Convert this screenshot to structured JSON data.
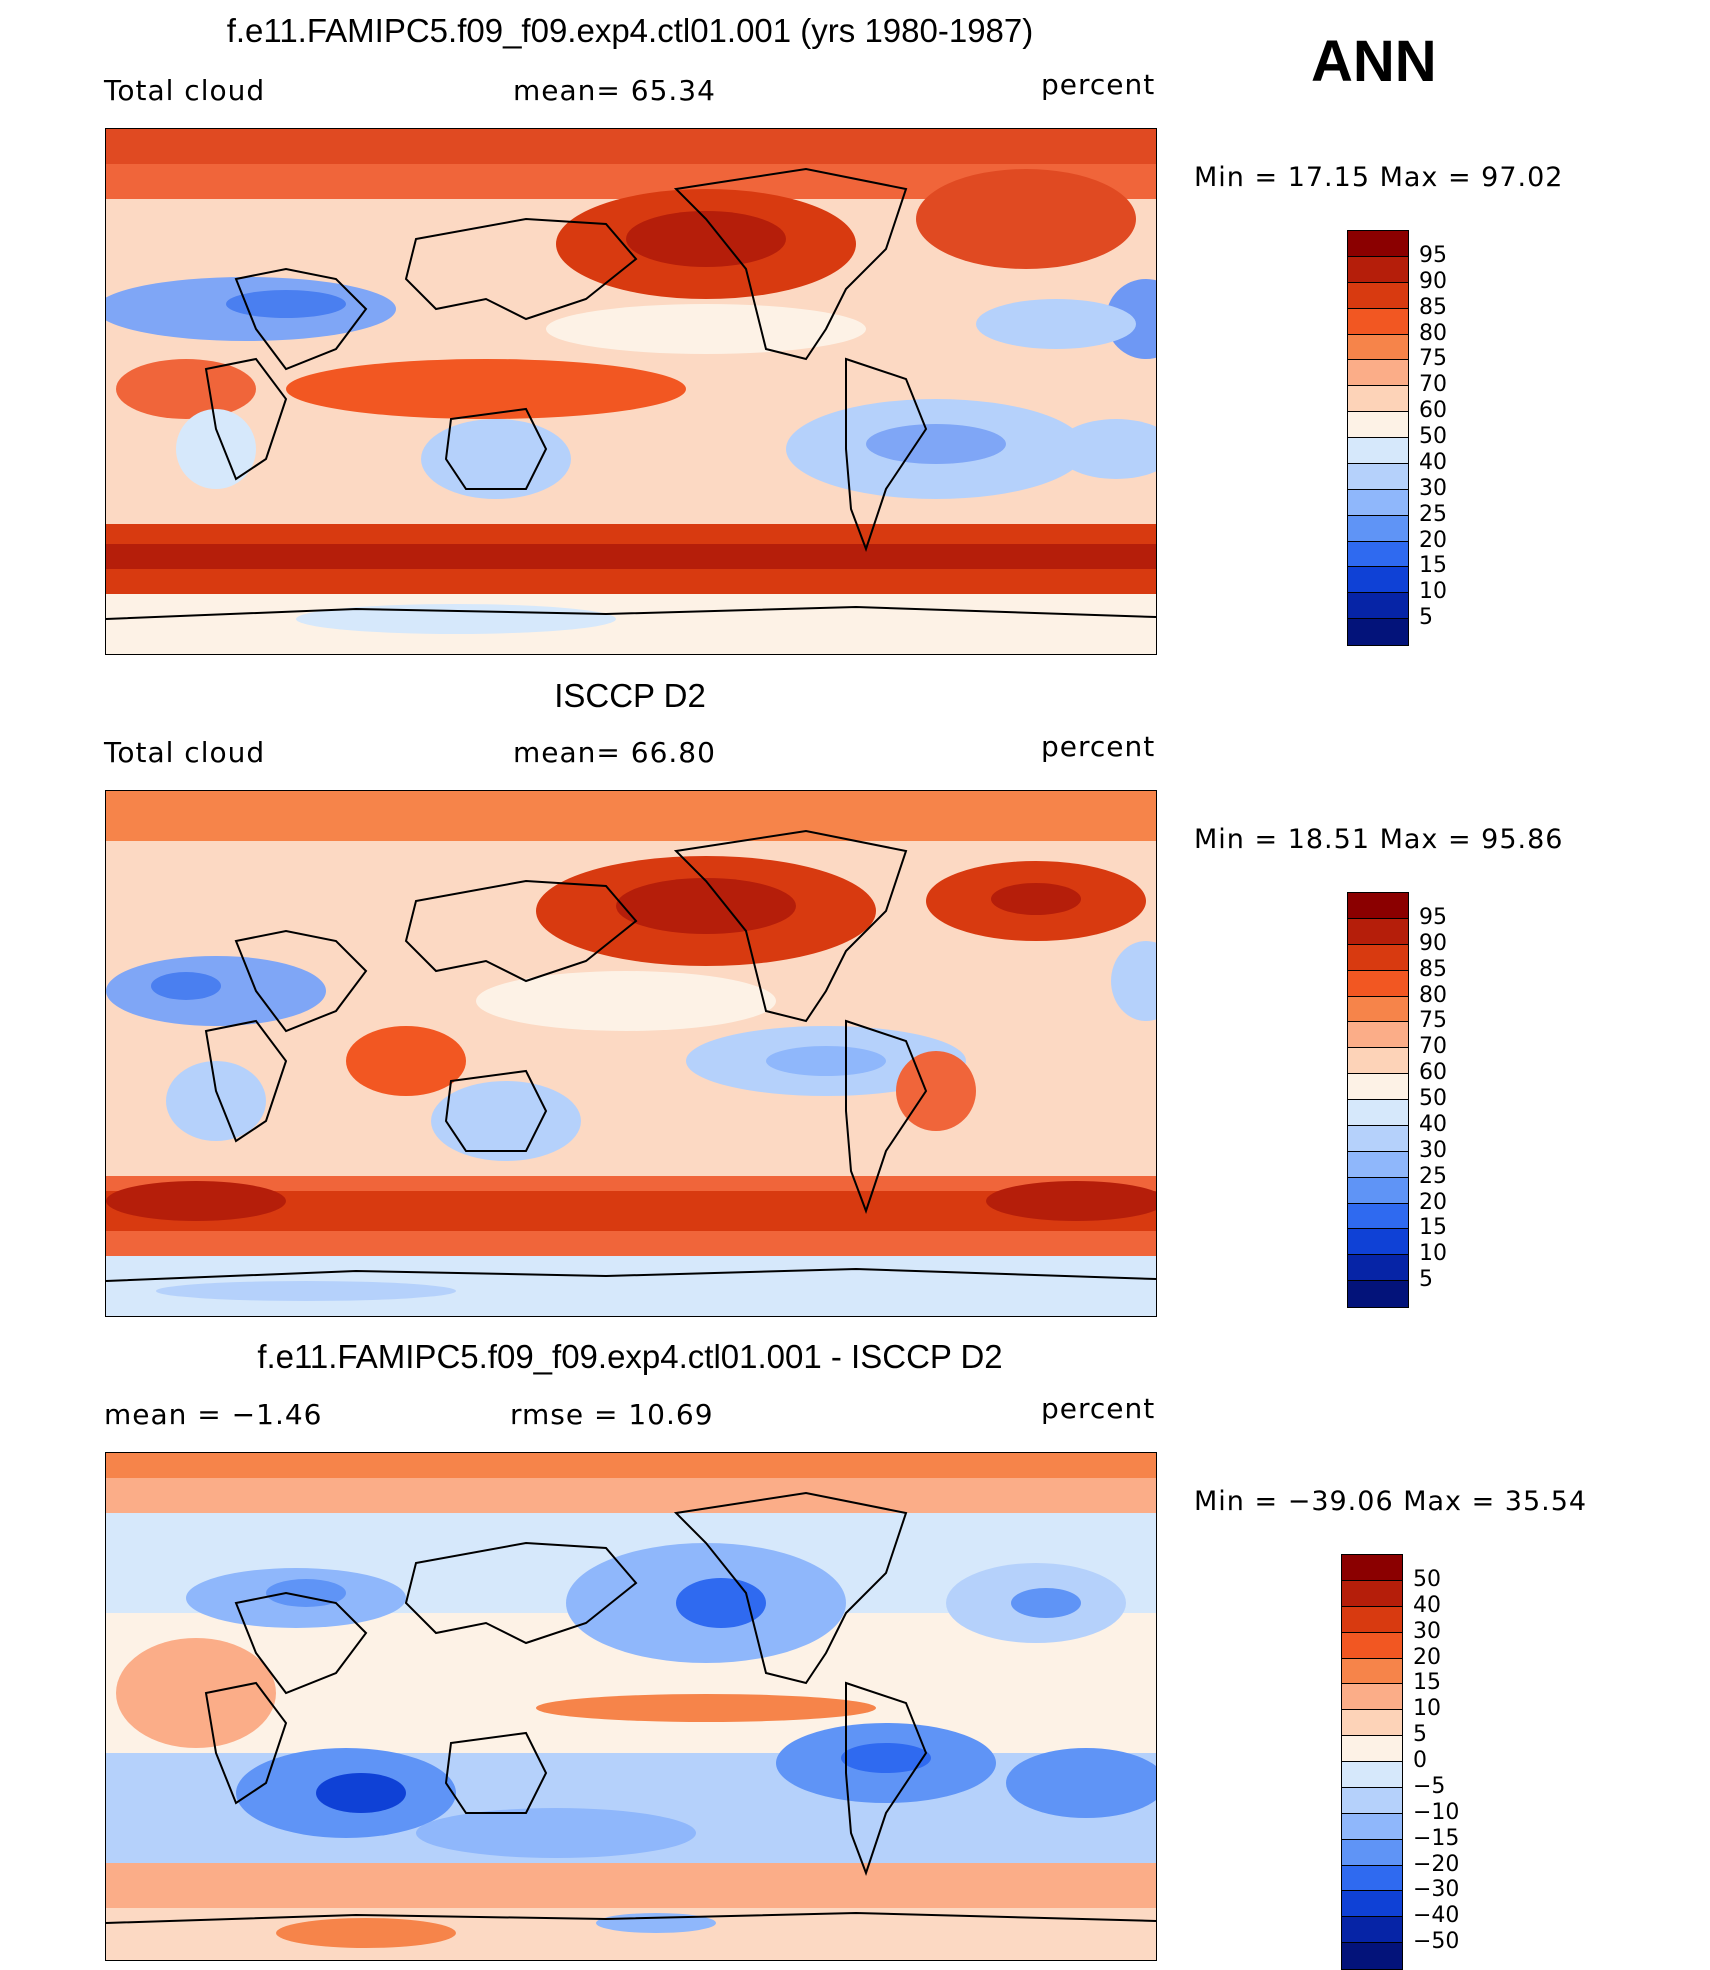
{
  "season": "ANN",
  "panels": [
    {
      "title": "f.e11.FAMIPC5.f09_f09.exp4.ctl01.001 (yrs 1980-1987)",
      "left_label": "Total cloud",
      "mid_label": "mean=   65.34",
      "units": "percent",
      "minmax": "Min =   17.15 Max =   97.02",
      "colorbar_levels": [
        "95",
        "90",
        "85",
        "80",
        "75",
        "70",
        "60",
        "50",
        "40",
        "30",
        "25",
        "20",
        "15",
        "10",
        "5"
      ],
      "colors": [
        "#8b0000",
        "#b51e0a",
        "#d83a10",
        "#f25722",
        "#f6844a",
        "#fbad88",
        "#fdd3b8",
        "#fdf2e6",
        "#d6e8fb",
        "#b5d1fb",
        "#8fb7fb",
        "#5f94f6",
        "#2f6af0",
        "#0f41d6",
        "#0624a6",
        "#03137a"
      ]
    },
    {
      "title": "ISCCP D2",
      "left_label": "Total cloud",
      "mid_label": "mean=   66.80",
      "units": "percent",
      "minmax": "Min =   18.51 Max =   95.86",
      "colorbar_levels": [
        "95",
        "90",
        "85",
        "80",
        "75",
        "70",
        "60",
        "50",
        "40",
        "30",
        "25",
        "20",
        "15",
        "10",
        "5"
      ],
      "colors": [
        "#8b0000",
        "#b51e0a",
        "#d83a10",
        "#f25722",
        "#f6844a",
        "#fbad88",
        "#fdd3b8",
        "#fdf2e6",
        "#d6e8fb",
        "#b5d1fb",
        "#8fb7fb",
        "#5f94f6",
        "#2f6af0",
        "#0f41d6",
        "#0624a6",
        "#03137a"
      ]
    },
    {
      "title": "f.e11.FAMIPC5.f09_f09.exp4.ctl01.001 - ISCCP D2",
      "left_label": "mean =   −1.46",
      "mid_label": "rmse =   10.69",
      "units": "percent",
      "minmax": "Min = −39.06 Max =   35.54",
      "colorbar_levels": [
        "50",
        "40",
        "30",
        "20",
        "15",
        "10",
        "5",
        "0",
        "−5",
        "−10",
        "−15",
        "−20",
        "−30",
        "−40",
        "−50"
      ],
      "colors": [
        "#8b0000",
        "#b51e0a",
        "#d83a10",
        "#f25722",
        "#f6844a",
        "#fbad88",
        "#fdd3b8",
        "#fdf2e6",
        "#d6e8fb",
        "#b5d1fb",
        "#8fb7fb",
        "#5f94f6",
        "#2f6af0",
        "#0f41d6",
        "#0624a6",
        "#03137a"
      ]
    }
  ],
  "chart_data": [
    {
      "type": "heatmap",
      "title": "f.e11.FAMIPC5.f09_f09.exp4.ctl01.001 (yrs 1980-1987)",
      "variable": "Total cloud",
      "units": "percent",
      "mean": 65.34,
      "min": 17.15,
      "max": 97.02,
      "levels": [
        5,
        10,
        15,
        20,
        25,
        30,
        40,
        50,
        60,
        70,
        75,
        80,
        85,
        90,
        95
      ]
    },
    {
      "type": "heatmap",
      "title": "ISCCP D2",
      "variable": "Total cloud",
      "units": "percent",
      "mean": 66.8,
      "min": 18.51,
      "max": 95.86,
      "levels": [
        5,
        10,
        15,
        20,
        25,
        30,
        40,
        50,
        60,
        70,
        75,
        80,
        85,
        90,
        95
      ]
    },
    {
      "type": "heatmap",
      "title": "f.e11.FAMIPC5.f09_f09.exp4.ctl01.001 - ISCCP D2",
      "units": "percent",
      "mean": -1.46,
      "rmse": 10.69,
      "min": -39.06,
      "max": 35.54,
      "levels": [
        -50,
        -40,
        -30,
        -20,
        -15,
        -10,
        -5,
        0,
        5,
        10,
        15,
        20,
        30,
        40,
        50
      ]
    }
  ]
}
